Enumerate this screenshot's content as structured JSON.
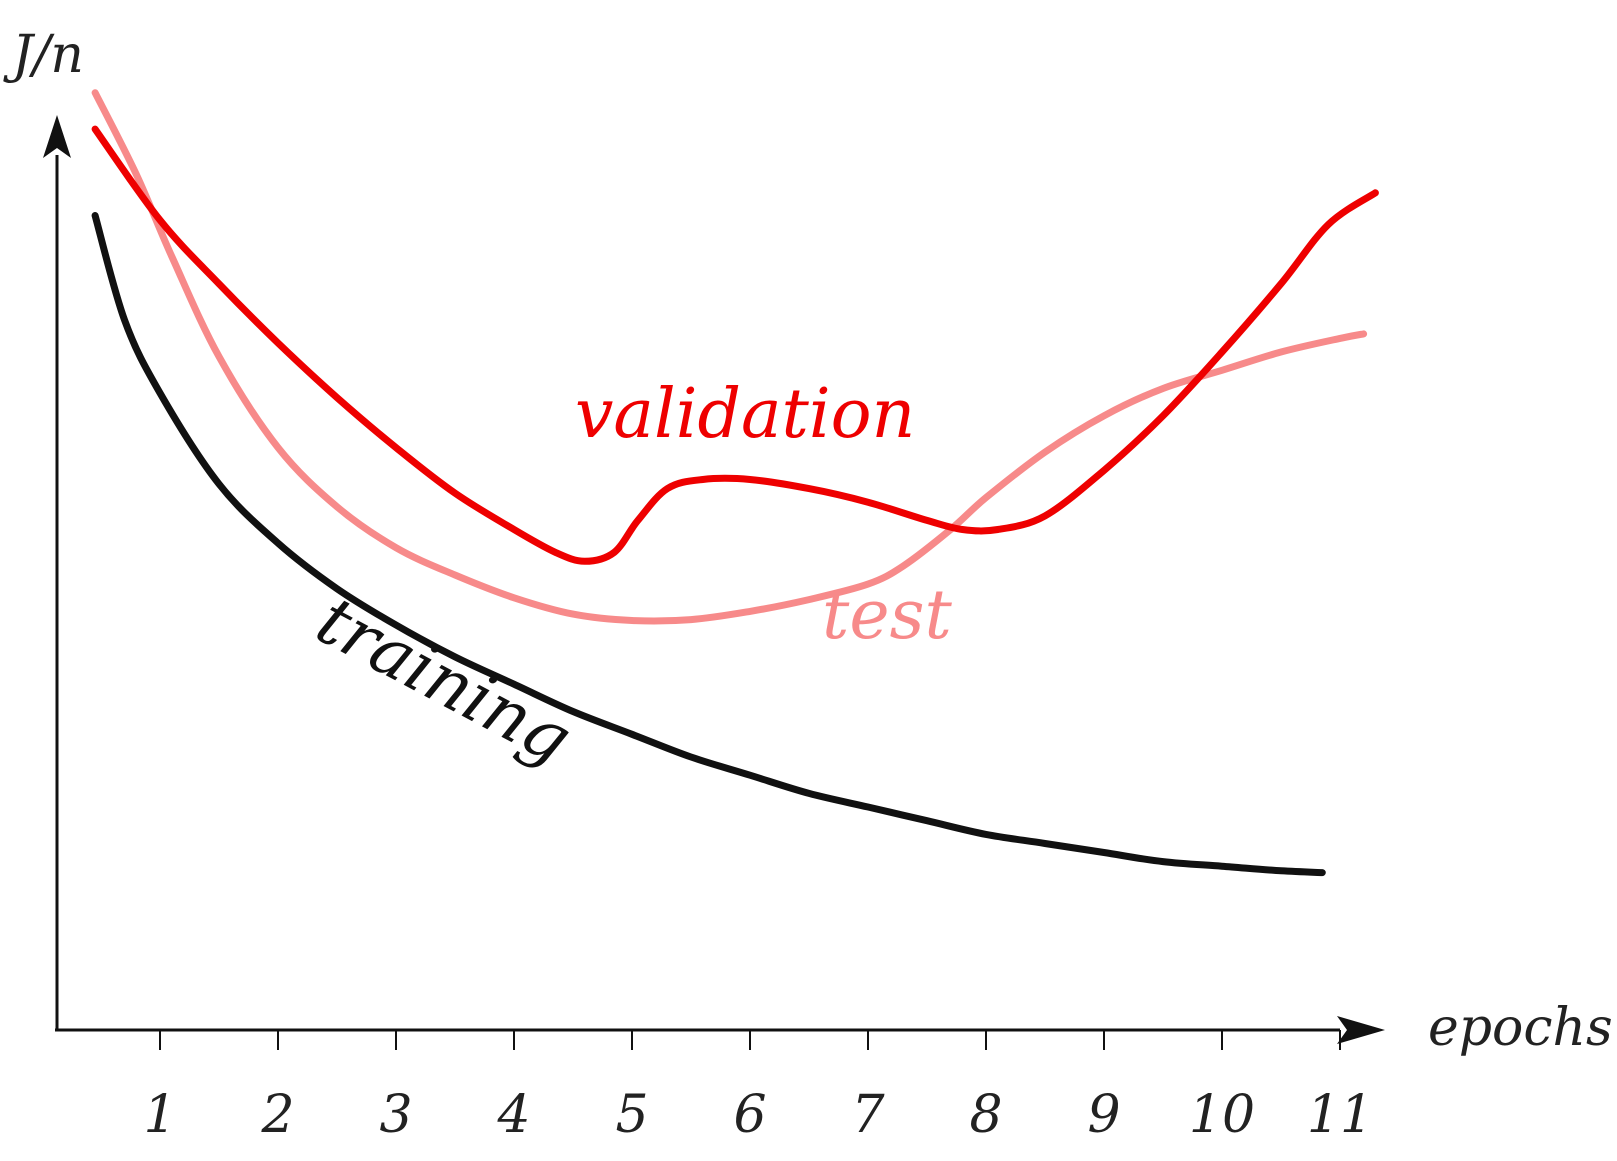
{
  "chart_data": {
    "type": "line",
    "title": "",
    "xlabel": "epochs",
    "ylabel": "J/n",
    "xlim": [
      0.1,
      11.4
    ],
    "ylim": [
      0,
      1
    ],
    "x_ticks": [
      "1",
      "2",
      "3",
      "4",
      "5",
      "6",
      "7",
      "8",
      "9",
      "10",
      "11"
    ],
    "grid": false,
    "legend": "none",
    "colors": {
      "axis": "#111111",
      "training": "#111111",
      "validation": "#ee0000",
      "test": "#f78a8a"
    },
    "series": [
      {
        "name": "training",
        "color": "#111111",
        "x": [
          0.45,
          0.7,
          1.0,
          1.5,
          2.0,
          2.5,
          3.0,
          3.5,
          4.0,
          4.5,
          5.0,
          5.5,
          6.0,
          6.5,
          7.0,
          7.5,
          8.0,
          8.5,
          9.0,
          9.5,
          10.0,
          10.5,
          10.85
        ],
        "y": [
          0.895,
          0.78,
          0.7,
          0.6,
          0.535,
          0.485,
          0.445,
          0.41,
          0.38,
          0.35,
          0.325,
          0.3,
          0.28,
          0.26,
          0.245,
          0.23,
          0.215,
          0.205,
          0.195,
          0.185,
          0.18,
          0.175,
          0.173
        ]
      },
      {
        "name": "validation",
        "color": "#ee0000",
        "x": [
          0.45,
          1.0,
          1.5,
          2.0,
          2.5,
          3.0,
          3.5,
          4.0,
          4.35,
          4.6,
          4.85,
          5.05,
          5.3,
          5.6,
          6.0,
          6.5,
          7.0,
          7.5,
          7.8,
          8.1,
          8.5,
          9.0,
          9.5,
          10.0,
          10.5,
          10.9,
          11.3
        ],
        "y": [
          0.99,
          0.89,
          0.82,
          0.755,
          0.695,
          0.64,
          0.59,
          0.55,
          0.525,
          0.515,
          0.525,
          0.56,
          0.595,
          0.605,
          0.605,
          0.595,
          0.58,
          0.56,
          0.55,
          0.55,
          0.565,
          0.615,
          0.675,
          0.745,
          0.82,
          0.885,
          0.92
        ]
      },
      {
        "name": "test",
        "color": "#f78a8a",
        "x": [
          0.45,
          0.8,
          1.1,
          1.5,
          2.0,
          2.5,
          3.0,
          3.5,
          4.0,
          4.5,
          5.0,
          5.5,
          6.0,
          6.5,
          7.0,
          7.3,
          7.7,
          8.0,
          8.5,
          9.0,
          9.5,
          10.0,
          10.5,
          11.0,
          11.2
        ],
        "y": [
          1.03,
          0.94,
          0.85,
          0.74,
          0.64,
          0.575,
          0.53,
          0.5,
          0.475,
          0.457,
          0.45,
          0.451,
          0.46,
          0.473,
          0.49,
          0.51,
          0.55,
          0.585,
          0.635,
          0.675,
          0.705,
          0.725,
          0.745,
          0.76,
          0.765
        ]
      }
    ],
    "annotations": [
      {
        "series": "training",
        "text": "training"
      },
      {
        "series": "validation",
        "text": "validation"
      },
      {
        "series": "test",
        "text": "test"
      }
    ]
  }
}
